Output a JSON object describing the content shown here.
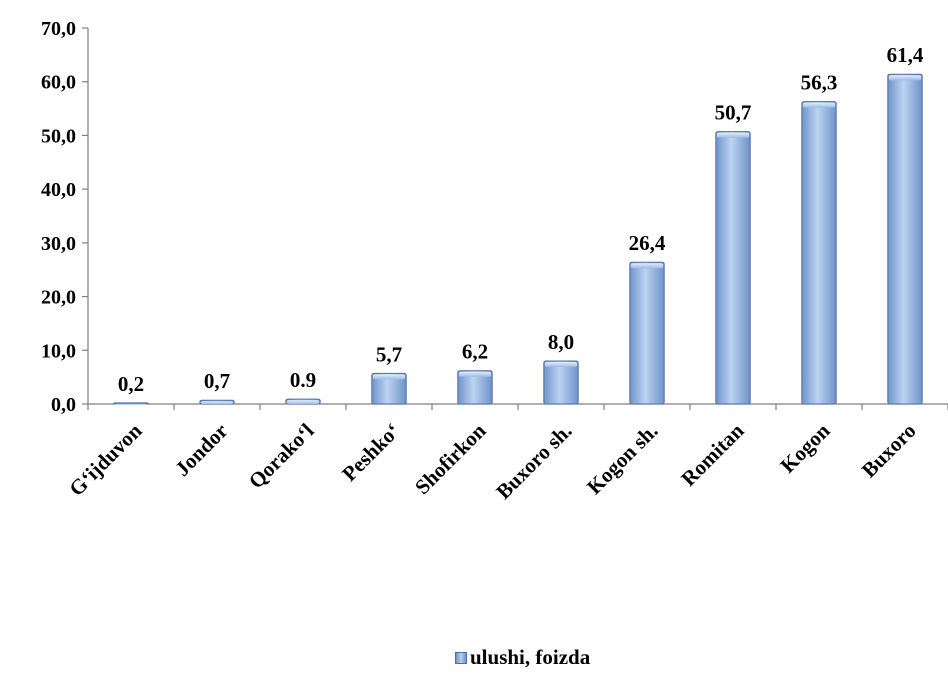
{
  "chart_data": {
    "type": "bar",
    "categories": [
      "G‘ijduvon",
      "Jondor",
      "Qorako‘l",
      "Peshko‘",
      "Shofirkon",
      "Buxoro sh.",
      "Kogon sh.",
      "Romitan",
      "Kogon",
      "Buxoro"
    ],
    "series": [
      {
        "name": "ulushi, foizda",
        "values": [
          0.2,
          0.7,
          0.9,
          5.7,
          6.2,
          8.0,
          26.4,
          50.7,
          56.3,
          61.4
        ],
        "labels": [
          "0,2",
          "0,7",
          "0.9",
          "5,7",
          "6,2",
          "8,0",
          "26,4",
          "50,7",
          "56,3",
          "61,4"
        ]
      }
    ],
    "y_ticks": [
      "0,0",
      "10,0",
      "20,0",
      "30,0",
      "40,0",
      "50,0",
      "60,0",
      "70,0"
    ],
    "ylim": [
      0,
      70
    ],
    "grid": false,
    "legend_position": "bottom",
    "bar_color": "#8fb2e3",
    "bar_edge_color": "#4e6fa3"
  },
  "legend": {
    "label": "ulushi, foizda"
  }
}
